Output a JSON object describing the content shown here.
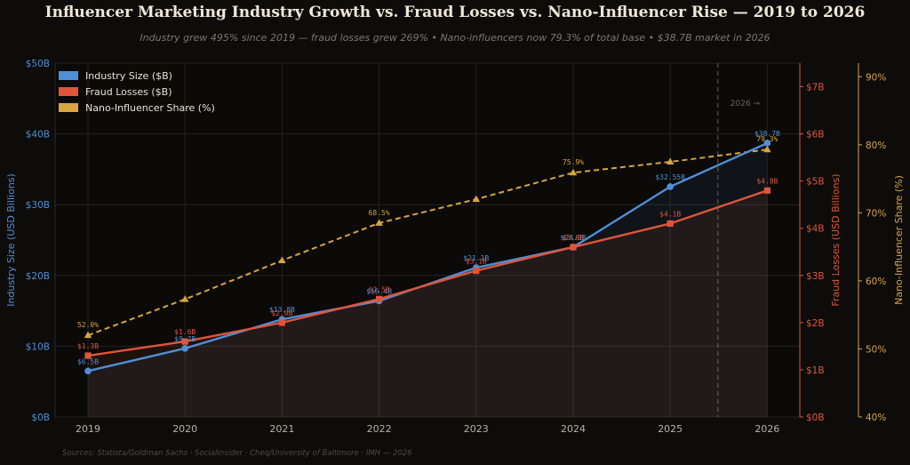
{
  "header": {
    "title": "Influencer Marketing Industry Growth vs. Fraud Losses vs. Nano-Influencer Rise — 2019 to 2026",
    "subtitle": "Industry grew 495% since 2019 — fraud losses grew 269%  •  Nano-influencers now 79.3% of total base  •  $38.7B market in 2026",
    "source": "Sources: Statista/Goldman Sachs · Socialinsider · Cheq/University of Baltimore · IMH — 2026"
  },
  "colors": {
    "industry": "#4f8fd6",
    "fraud": "#e0553a",
    "nano": "#d9a441",
    "grid": "#24221d",
    "marker_line": "#5a5650"
  },
  "chart_data": {
    "type": "line",
    "categories": [
      "2019",
      "2020",
      "2021",
      "2022",
      "2023",
      "2024",
      "2025",
      "2026"
    ],
    "series": [
      {
        "name": "Industry Size ($B)",
        "axis": "left",
        "values": [
          6.5,
          9.7,
          13.8,
          16.4,
          21.1,
          24.0,
          32.55,
          38.7
        ],
        "labels": [
          "$6.5B",
          "$9.7B",
          "$13.8B",
          "$16.4B",
          "$21.1B",
          "$24.0B",
          "$32.55B",
          "$38.7B"
        ]
      },
      {
        "name": "Fraud Losses ($B)",
        "axis": "right",
        "values": [
          1.3,
          1.6,
          2.0,
          2.5,
          3.1,
          3.6,
          4.1,
          4.8
        ],
        "labels": [
          "$1.3B",
          "$1.6B",
          "$2.0B",
          "$2.5B",
          "$3.1B",
          "$3.6B",
          "$4.1B",
          "$4.8B"
        ]
      },
      {
        "name": "Nano-Influencer Share (%)",
        "axis": "far-right",
        "values": [
          52.0,
          57.3,
          63.0,
          68.5,
          72.0,
          75.9,
          77.5,
          79.3
        ],
        "labels": [
          "52.0%",
          "",
          "",
          "68.5%",
          "",
          "75.9%",
          "",
          "79.3%"
        ]
      }
    ],
    "ylabel_left": "Industry Size (USD Billions)",
    "ylabel_right": "Fraud Losses (USD Billions)",
    "ylabel_far_right": "Nano-Influencer Share (%)",
    "ylim_left": [
      0,
      50
    ],
    "ylim_right": [
      0,
      7.5
    ],
    "ylim_far_right": [
      40,
      92
    ],
    "ticks_left": [
      "$0B",
      "$10B",
      "$20B",
      "$30B",
      "$40B",
      "$50B"
    ],
    "ticks_right": [
      "$0B",
      "$1B",
      "$2B",
      "$3B",
      "$4B",
      "$5B",
      "$6B",
      "$7B"
    ],
    "ticks_far_right": [
      "40%",
      "50%",
      "60%",
      "70%",
      "80%",
      "90%"
    ],
    "annotation": "2026 →",
    "legend_position": "top-left",
    "grid": true
  }
}
